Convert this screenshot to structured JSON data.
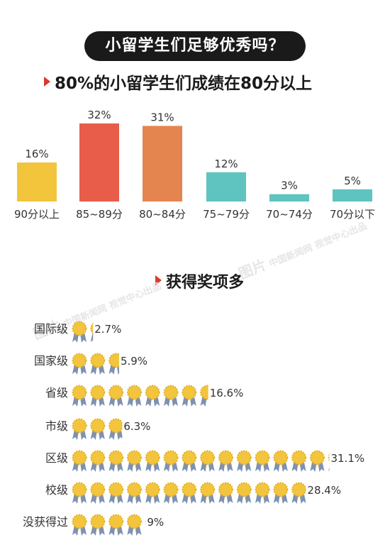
{
  "title": "小留学生们足够优秀吗？",
  "heading1": "80%的小留学生们成绩在80分以上",
  "heading2": "获得奖项多",
  "watermarks": [
    {
      "logo": "图片",
      "text1": "中国新闻网",
      "text2": "视觉中心出品"
    },
    {
      "logo": "图片",
      "text1": "中国新闻网",
      "text2": "视觉中心出品"
    }
  ],
  "chart_data": [
    {
      "type": "bar",
      "categories": [
        "90分以上",
        "85~89分",
        "80~84分",
        "75~79分",
        "70~74分",
        "70分以下"
      ],
      "values": [
        16,
        32,
        31,
        12,
        3,
        5
      ],
      "value_labels": [
        "16%",
        "32%",
        "31%",
        "12%",
        "3%",
        "5%"
      ],
      "colors": [
        "#f2c53d",
        "#e85d4a",
        "#e4854f",
        "#5fc3c0",
        "#5fc3c0",
        "#5fc3c0"
      ],
      "title": "80%的小留学生们成绩在80分以上",
      "ylim": [
        0,
        32
      ],
      "grid": false,
      "legend": "none"
    },
    {
      "type": "bar",
      "orientation": "horizontal",
      "mark": "medal-icon",
      "categories": [
        "国际级",
        "国家级",
        "省级",
        "市级",
        "区级",
        "校级",
        "没获得过"
      ],
      "values": [
        2.7,
        5.9,
        16.6,
        6.3,
        31.1,
        28.4,
        9
      ],
      "value_labels": [
        "2.7%",
        "5.9%",
        "16.6%",
        "6.3%",
        "31.1%",
        "28.4%",
        "9%"
      ],
      "percent_per_medal": 2.2,
      "colors": {
        "medal": "#f2c53d",
        "ribbon": "#7e92b0"
      },
      "title": "获得奖项多",
      "grid": false,
      "legend": "none"
    }
  ]
}
